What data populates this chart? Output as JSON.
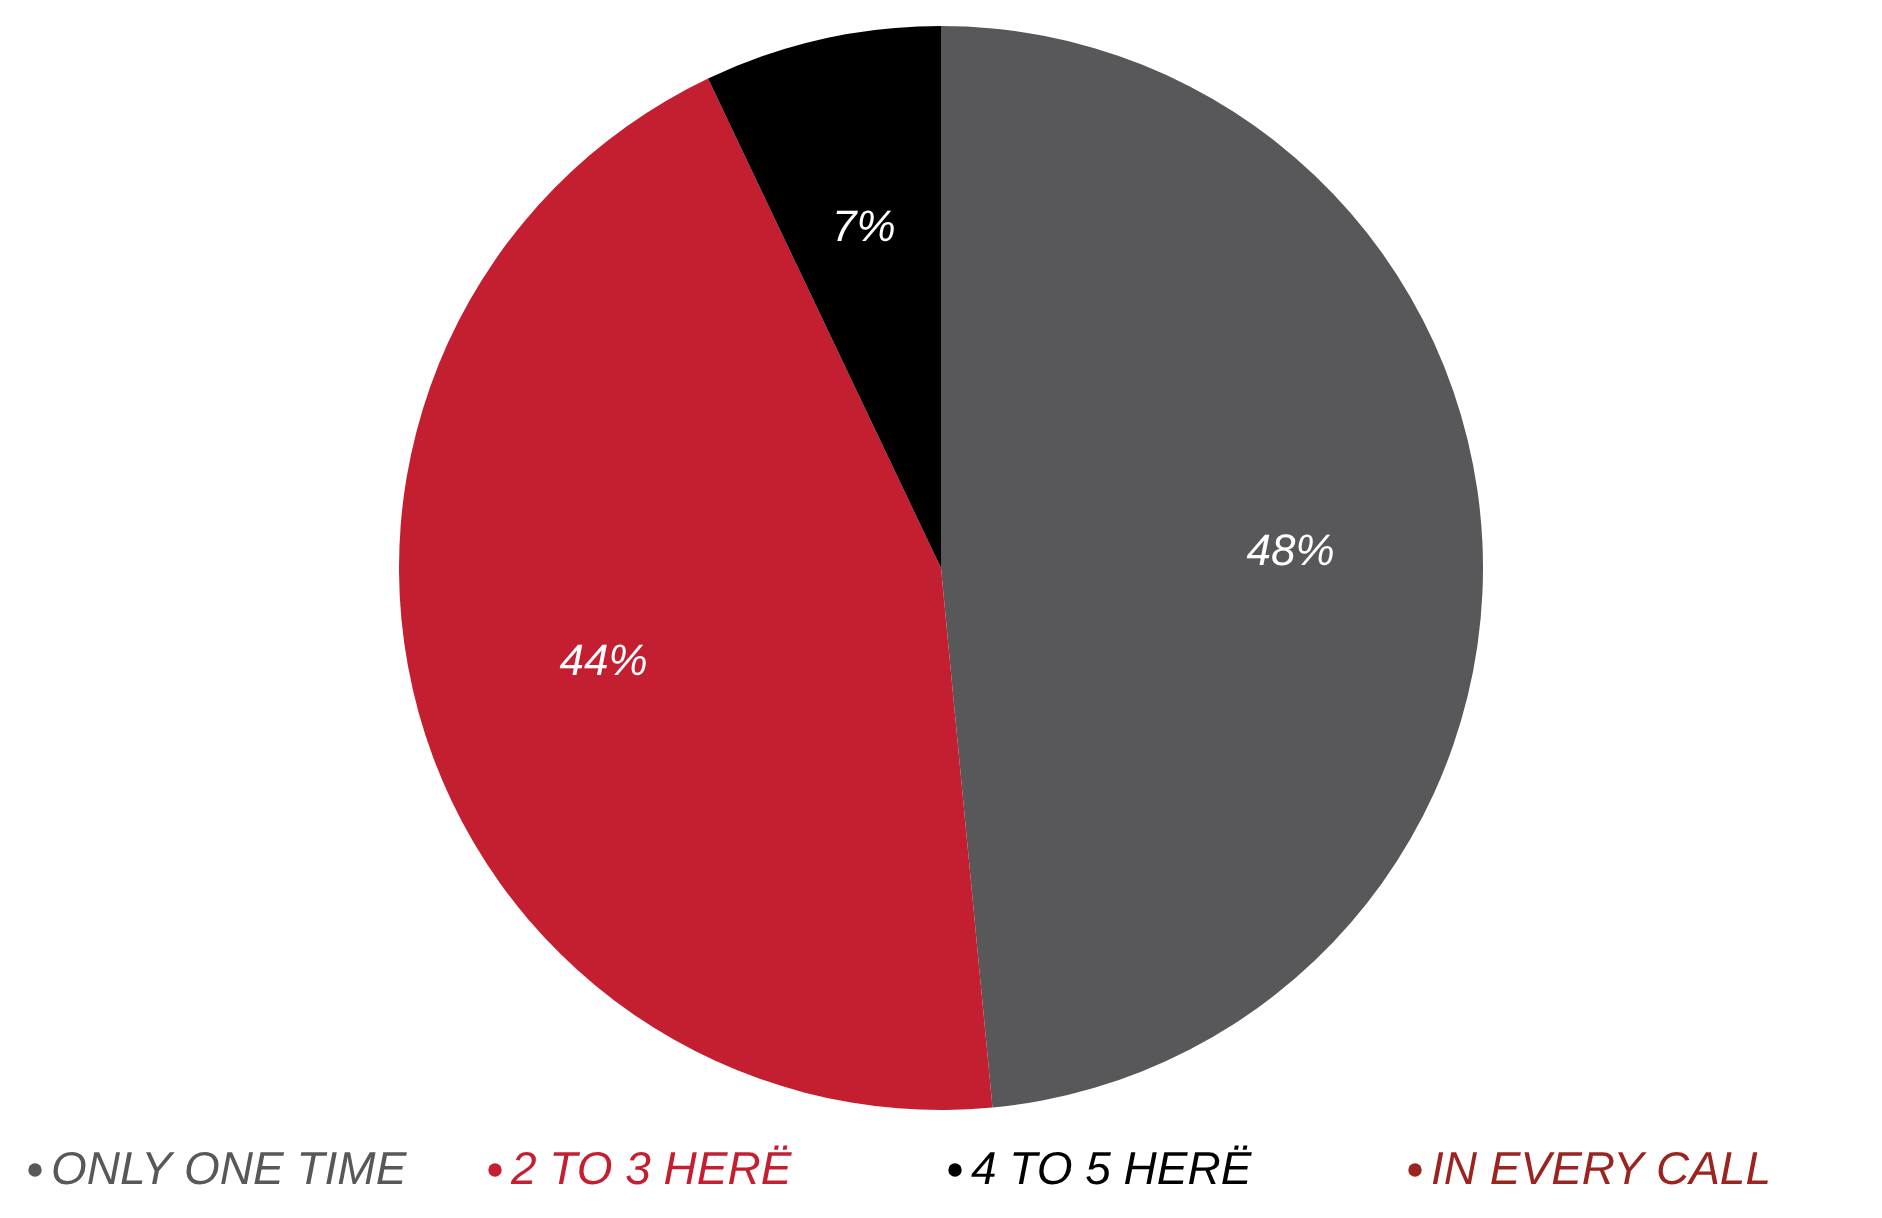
{
  "chart_data": {
    "type": "pie",
    "categories": [
      "ONLY ONE TIME",
      "2 TO 3 HERË",
      "4 TO 5 HERË",
      "IN EVERY CALL"
    ],
    "values": [
      48,
      44,
      7,
      0
    ],
    "colors": [
      "#58585a",
      "#c41f30",
      "#000000",
      "#9b2421"
    ],
    "value_labels": [
      "48%",
      "44%",
      "7%",
      null
    ],
    "legend": "bottom"
  }
}
